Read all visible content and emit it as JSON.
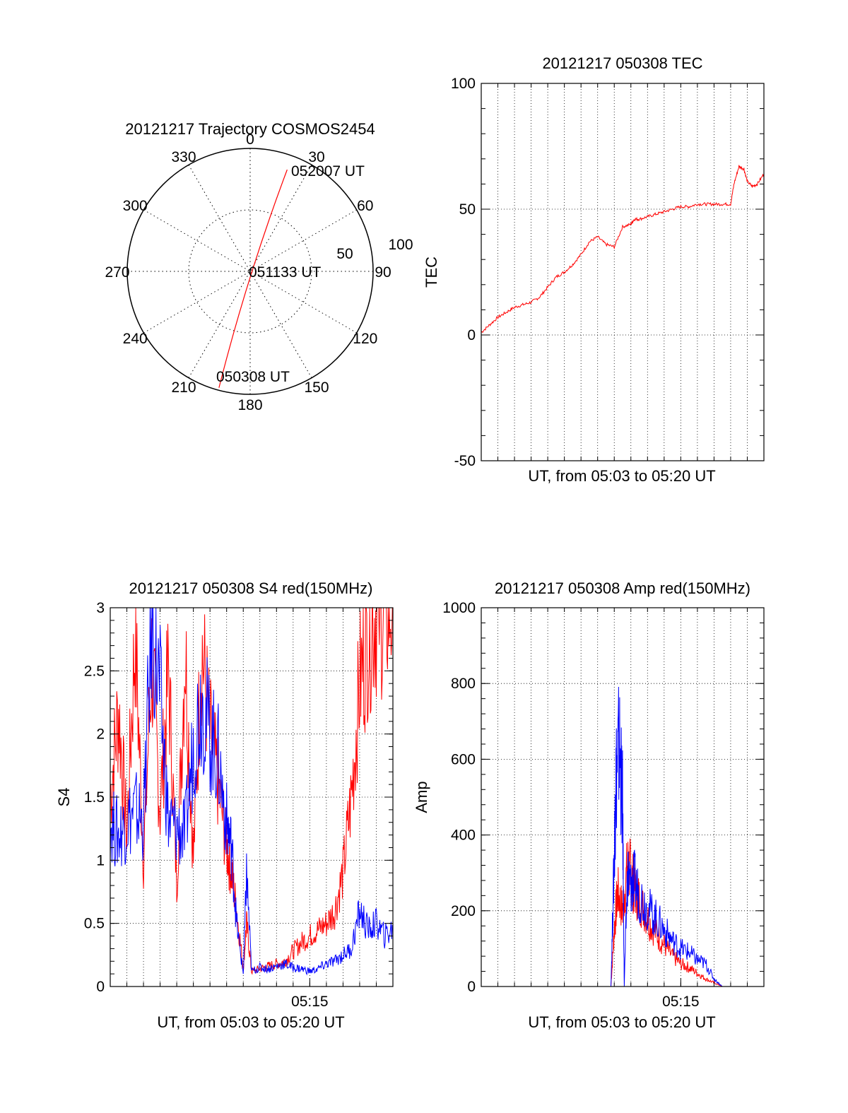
{
  "colors": {
    "red": "#ff0000",
    "blue": "#0000ff",
    "axis": "#000000",
    "grid": "#000000"
  },
  "chart_data": [
    {
      "id": "trajectory",
      "type": "polar",
      "title": "20121217 Trajectory COSMOS2454",
      "angle_labels": [
        "0",
        "30",
        "60",
        "90",
        "120",
        "150",
        "180",
        "210",
        "240",
        "270",
        "300",
        "330"
      ],
      "radius_labels": [
        "50",
        "100"
      ],
      "radius_max": 100,
      "track": {
        "points": [
          [
            20,
            90
          ],
          [
            195,
            85
          ]
        ],
        "start_label": "050308 UT",
        "mid_label": "051133 UT",
        "end_label": "052007 UT"
      }
    },
    {
      "id": "tec",
      "type": "line",
      "title": "20121217 050308 TEC",
      "xlabel": "UT, from 05:03 to 05:20 UT",
      "ylabel": "TEC",
      "xlim": [
        0,
        17
      ],
      "ylim": [
        -50,
        100
      ],
      "yticks": [
        "-50",
        "0",
        "50",
        "100"
      ],
      "series": [
        {
          "color": "red",
          "x": [
            0,
            0.5,
            1,
            1.5,
            2,
            2.5,
            3,
            3.5,
            4,
            4.5,
            5,
            5.5,
            6,
            6.5,
            7,
            7.5,
            8,
            8.5,
            9,
            9.2,
            9.5,
            10,
            10.5,
            11,
            11.5,
            12,
            12.5,
            13,
            13.5,
            14,
            14.5,
            15,
            15.2,
            15.5,
            15.8,
            16,
            16.3,
            16.6,
            17
          ],
          "y": [
            1,
            4,
            7,
            9,
            11,
            12,
            13,
            15,
            19,
            23,
            25,
            28,
            32,
            37,
            39,
            36,
            35,
            43,
            44,
            46,
            46,
            47,
            48,
            49,
            50,
            51,
            51,
            52,
            52,
            52,
            52,
            52,
            60,
            67,
            66,
            61,
            59,
            60,
            64
          ]
        }
      ]
    },
    {
      "id": "s4",
      "type": "line",
      "title": "20121217 050308 S4 red(150MHz)",
      "xlabel": "UT, from 05:03 to 05:20 UT",
      "ylabel": "S4",
      "xlim": [
        0,
        17
      ],
      "ylim": [
        0,
        3
      ],
      "yticks": [
        "0",
        "0.5",
        "1",
        "1.5",
        "2",
        "2.5",
        "3"
      ],
      "xticks": [
        {
          "x": 12,
          "label": "05:15"
        }
      ],
      "series": [
        {
          "color": "red",
          "x": [
            0,
            0.5,
            1,
            1.5,
            2,
            2.5,
            3,
            3.5,
            4,
            4.5,
            5,
            5.5,
            6,
            6.5,
            7,
            7.3,
            7.6,
            8,
            8.2,
            8.5,
            9,
            9.5,
            10,
            10.5,
            11,
            11.5,
            12,
            12.5,
            13,
            13.5,
            14,
            14.5,
            15,
            15.5,
            16,
            16.5,
            17
          ],
          "y": [
            1.5,
            2.2,
            1.2,
            2.8,
            1.0,
            2.6,
            1.4,
            2.5,
            0.8,
            2.7,
            1.0,
            2.7,
            2.0,
            1.6,
            1.1,
            0.9,
            0.6,
            0.15,
            0.5,
            0.12,
            0.14,
            0.16,
            0.18,
            0.2,
            0.28,
            0.35,
            0.4,
            0.45,
            0.5,
            0.6,
            0.9,
            1.5,
            2.4,
            2.8,
            3.0,
            3.0,
            3.0
          ]
        },
        {
          "color": "blue",
          "x": [
            0,
            0.5,
            1,
            1.5,
            2,
            2.5,
            3,
            3.5,
            4,
            4.5,
            5,
            5.5,
            6,
            6.5,
            7,
            7.3,
            7.6,
            8,
            8.2,
            8.5,
            9,
            9.5,
            10,
            10.5,
            11,
            11.5,
            12,
            12.5,
            13,
            13.5,
            14,
            14.5,
            15,
            15.5,
            16,
            16.5,
            17
          ],
          "y": [
            1.3,
            1.2,
            1.3,
            1.4,
            1.3,
            2.9,
            2.3,
            1.3,
            1.25,
            1.2,
            1.9,
            2.3,
            2.0,
            1.8,
            1.3,
            1.1,
            0.5,
            0.1,
            0.9,
            0.12,
            0.15,
            0.14,
            0.16,
            0.18,
            0.15,
            0.14,
            0.12,
            0.14,
            0.18,
            0.2,
            0.25,
            0.3,
            0.6,
            0.45,
            0.5,
            0.4,
            0.45
          ]
        }
      ]
    },
    {
      "id": "amp",
      "type": "line",
      "title": "20121217 050308 Amp red(150MHz)",
      "xlabel": "UT, from 05:03 to 05:20 UT",
      "ylabel": "Amp",
      "xlim": [
        0,
        17
      ],
      "ylim": [
        0,
        1000
      ],
      "yticks": [
        "0",
        "200",
        "400",
        "600",
        "800",
        "1000"
      ],
      "xticks": [
        {
          "x": 12,
          "label": "05:15"
        }
      ],
      "series": [
        {
          "color": "red",
          "x": [
            0,
            7.8,
            8,
            8.2,
            8.5,
            8.8,
            9,
            9.2,
            9.5,
            10,
            10.5,
            11,
            11.5,
            12,
            12.5,
            13,
            13.5,
            14,
            14.5,
            17
          ],
          "y": [
            0,
            0,
            150,
            250,
            200,
            320,
            300,
            260,
            230,
            180,
            140,
            110,
            80,
            60,
            50,
            35,
            20,
            10,
            0,
            0
          ]
        },
        {
          "color": "blue",
          "x": [
            0,
            7.8,
            8,
            8.1,
            8.3,
            8.5,
            8.6,
            8.8,
            9,
            9.2,
            9.5,
            10,
            10.5,
            11,
            11.5,
            12,
            12.5,
            13,
            13.5,
            14,
            14.5,
            17
          ],
          "y": [
            0,
            0,
            350,
            550,
            640,
            480,
            0,
            300,
            260,
            280,
            240,
            210,
            180,
            150,
            120,
            100,
            90,
            70,
            60,
            20,
            0,
            0
          ]
        }
      ]
    }
  ]
}
